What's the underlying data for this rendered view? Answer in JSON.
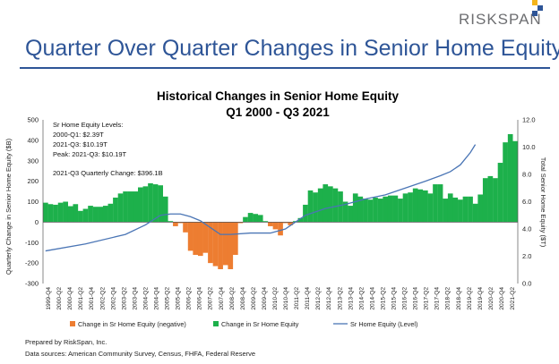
{
  "brand": "RISKSPAN",
  "slide_title": "Quarter Over Quarter Changes in Senior Home Equity",
  "footer": {
    "prepared_by": "Prepared by RiskSpan, Inc.",
    "sources": "Data sources: American Community Survey, Census, FHFA, Federal Reserve"
  },
  "colors": {
    "positive": "#1db04b",
    "negative": "#ed7d31",
    "line": "#4a75b5",
    "title": "#2e5597"
  },
  "chart_data": {
    "type": "bar",
    "title": "Historical Changes in Senior Home Equity",
    "subtitle": "Q1 2000 - Q3 2021",
    "ylabel": "Quarterly Change in Senior Home Equity ($B)",
    "y2label": "Total Senior Home Equity ($T)",
    "ylim": [
      -300,
      500
    ],
    "yticks": [
      -300,
      -200,
      -100,
      0,
      100,
      200,
      300,
      400,
      500
    ],
    "y2lim": [
      0,
      12
    ],
    "y2ticks": [
      "0.0",
      "2.0",
      "4.0",
      "6.0",
      "8.0",
      "10.0",
      "12.0"
    ],
    "grid": false,
    "legend_position": "bottom",
    "x_tick_labels": [
      "1999-Q4",
      "2000-Q2",
      "2000-Q4",
      "2001-Q2",
      "2001-Q4",
      "2002-Q2",
      "2002-Q4",
      "2003-Q2",
      "2003-Q4",
      "2004-Q2",
      "2004-Q4",
      "2005-Q2",
      "2005-Q4",
      "2006-Q2",
      "2006-Q4",
      "2007-Q2",
      "2007-Q4",
      "2008-Q2",
      "2008-Q4",
      "2009-Q2",
      "2009-Q4",
      "2010-Q2",
      "2010-Q4",
      "2011-Q2",
      "2011-Q4",
      "2012-Q2",
      "2012-Q4",
      "2013-Q2",
      "2013-Q4",
      "2014-Q2",
      "2014-Q4",
      "2015-Q2",
      "2015-Q4",
      "2016-Q2",
      "2016-Q4",
      "2017-Q2",
      "2017-Q4",
      "2018-Q2",
      "2018-Q4",
      "2019-Q2",
      "2019-Q4",
      "2020-Q2",
      "2020-Q4",
      "2021-Q2"
    ],
    "annotations": [
      "Sr Home Equity Levels:",
      "2000-Q1: $2.39T",
      "2021-Q3: $10.19T",
      "Peak: 2021-Q3: $10.19T",
      "2021-Q3 Quarterly Change: $396.1B"
    ],
    "legend": [
      {
        "label": "Change in Sr Home Equity (negative)",
        "kind": "bar",
        "color": "#ed7d31"
      },
      {
        "label": "Change in Sr Home Equity",
        "kind": "bar",
        "color": "#1db04b"
      },
      {
        "label": "Sr Home Equity (Level)",
        "kind": "line",
        "color": "#4a75b5"
      }
    ],
    "series": [
      {
        "axis": "left",
        "kind": "bar",
        "values": [
          95,
          88,
          85,
          95,
          100,
          78,
          88,
          55,
          65,
          80,
          75,
          75,
          80,
          90,
          120,
          140,
          150,
          150,
          150,
          170,
          175,
          190,
          185,
          180,
          125,
          5,
          -20,
          -5,
          -50,
          -140,
          -160,
          -165,
          -150,
          -200,
          -215,
          -230,
          -210,
          -230,
          -160,
          -5,
          25,
          45,
          40,
          35,
          5,
          -20,
          -35,
          -65,
          -5,
          -15,
          5,
          20,
          85,
          155,
          145,
          165,
          185,
          175,
          165,
          150,
          100,
          80,
          140,
          125,
          115,
          110,
          120,
          115,
          125,
          130,
          130,
          115,
          140,
          145,
          165,
          160,
          155,
          140,
          185,
          185,
          115,
          140,
          120,
          110,
          125,
          125,
          90,
          135,
          215,
          225,
          215,
          290,
          390,
          430,
          396
        ],
        "first_quarter": "2000-Q1"
      },
      {
        "name": "Sr Home Equity (Level)",
        "axis": "right",
        "kind": "line",
        "x": [
          "2000-Q1",
          "2002-Q1",
          "2004-Q1",
          "2005-Q1",
          "2005-Q4",
          "2006-Q2",
          "2006-Q4",
          "2007-Q2",
          "2007-Q4",
          "2008-Q2",
          "2008-Q4",
          "2009-Q2",
          "2010-Q2",
          "2011-Q2",
          "2012-Q1",
          "2013-Q1",
          "2014-Q1",
          "2015-Q1",
          "2016-Q1",
          "2017-Q1",
          "2018-Q1",
          "2019-Q1",
          "2019-Q4",
          "2020-Q2",
          "2020-Q4",
          "2021-Q2",
          "2021-Q3"
        ],
        "values": [
          2.39,
          2.9,
          3.6,
          4.3,
          5.0,
          5.1,
          5.1,
          4.9,
          4.6,
          4.1,
          3.6,
          3.6,
          3.7,
          3.7,
          4.0,
          5.0,
          5.5,
          5.8,
          6.2,
          6.5,
          7.0,
          7.5,
          7.9,
          8.2,
          8.7,
          9.6,
          10.19
        ]
      }
    ]
  }
}
